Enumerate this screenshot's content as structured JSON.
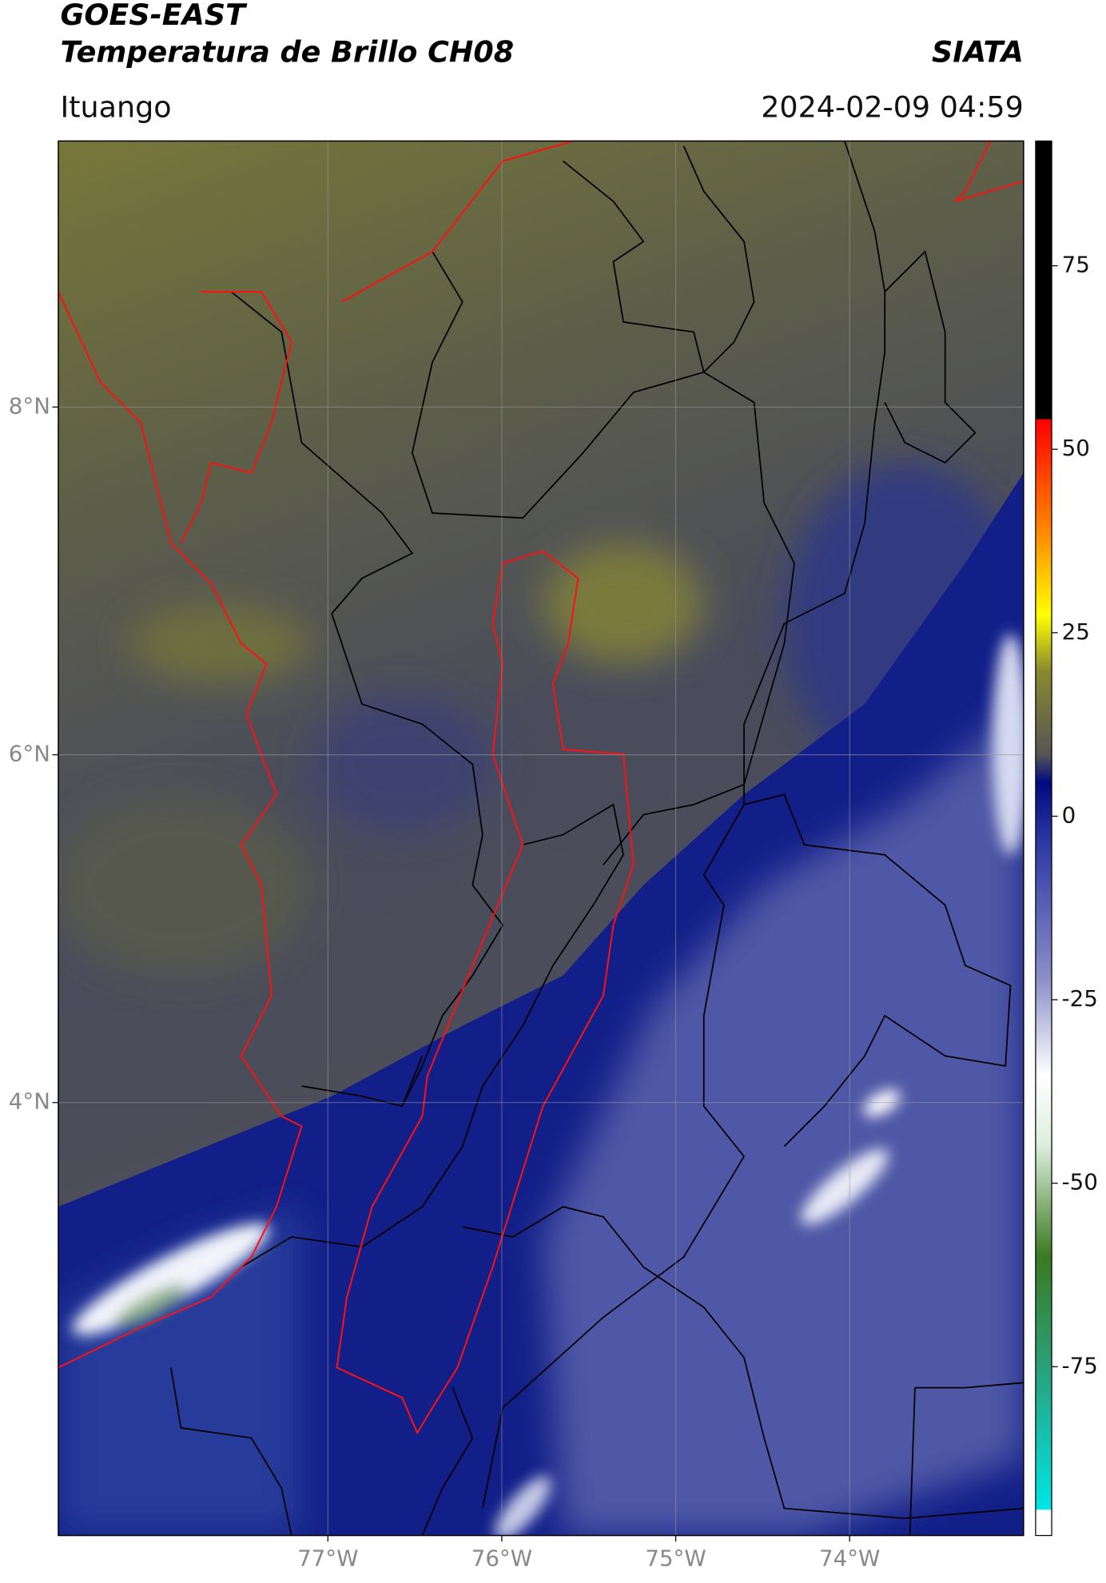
{
  "header": {
    "title": "GOES-EAST",
    "subtitle": "Temperatura de Brillo CH08",
    "source": "SIATA",
    "location": "Ituango",
    "timestamp": "2024-02-09 04:59"
  },
  "map": {
    "lon_range": [
      -78.55,
      -73.0
    ],
    "lat_range": [
      1.51,
      9.53
    ],
    "lat_ticks": [
      {
        "value": 8,
        "label": "8°N"
      },
      {
        "value": 6,
        "label": "6°N"
      },
      {
        "value": 4,
        "label": "4°N"
      }
    ],
    "lon_ticks": [
      {
        "value": -77,
        "label": "77°W"
      },
      {
        "value": -76,
        "label": "76°W"
      },
      {
        "value": -75,
        "label": "75°W"
      },
      {
        "value": -74,
        "label": "74°W"
      }
    ],
    "grid": true
  },
  "colorbar": {
    "range": [
      -98,
      92
    ],
    "ticks": [
      75,
      50,
      25,
      0,
      -25,
      -50,
      -75
    ]
  }
}
